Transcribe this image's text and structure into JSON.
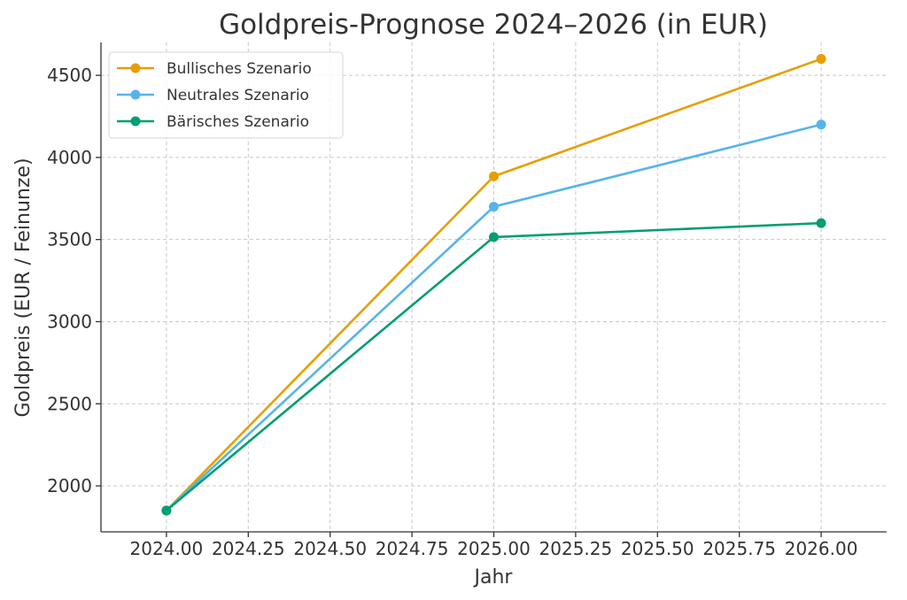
{
  "chart_data": {
    "type": "line",
    "title": "Goldpreis-Prognose 2024–2026 (in EUR)",
    "xlabel": "Jahr",
    "ylabel": "Goldpreis (EUR / Feinunze)",
    "x": [
      2024,
      2025,
      2026
    ],
    "xlim": [
      2023.8,
      2026.2
    ],
    "ylim": [
      1720,
      4700
    ],
    "x_ticks": [
      2024.0,
      2024.25,
      2024.5,
      2024.75,
      2025.0,
      2025.25,
      2025.5,
      2025.75,
      2026.0
    ],
    "x_tick_labels": [
      "2024.00",
      "2024.25",
      "2024.50",
      "2024.75",
      "2025.00",
      "2025.25",
      "2025.50",
      "2025.75",
      "2026.00"
    ],
    "y_ticks": [
      2000,
      2500,
      3000,
      3500,
      4000,
      4500
    ],
    "y_tick_labels": [
      "2000",
      "2500",
      "3000",
      "3500",
      "4000",
      "4500"
    ],
    "grid": true,
    "legend_position": "top-left",
    "series": [
      {
        "name": "Bullisches Szenario",
        "values": [
          1850,
          3885,
          4600
        ],
        "color": "#E69F00"
      },
      {
        "name": "Neutrales Szenario",
        "values": [
          1850,
          3700,
          4200
        ],
        "color": "#56B4E9"
      },
      {
        "name": "Bärisches Szenario",
        "values": [
          1850,
          3515,
          3600
        ],
        "color": "#009E73"
      }
    ]
  }
}
